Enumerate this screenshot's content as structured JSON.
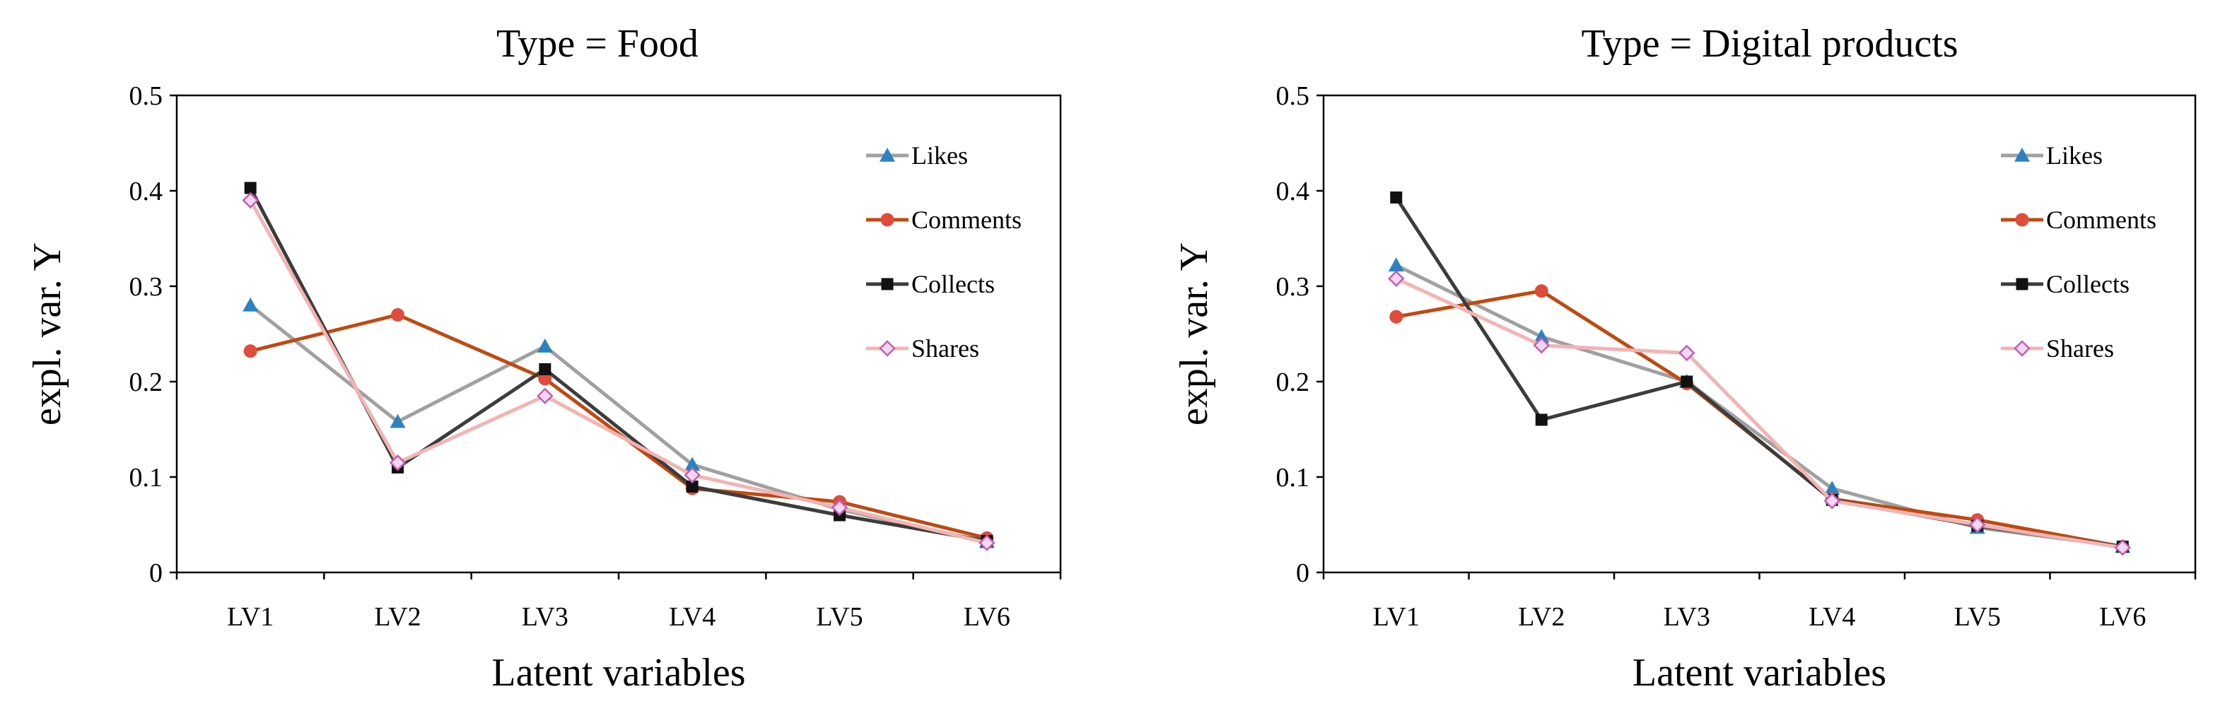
{
  "colors": {
    "Likes": "#a0a0a0",
    "Comments": "#bf4a10",
    "Collects": "#3c3c3c",
    "Shares": "#f4b3b3",
    "likes_marker": "#2c82c0",
    "comments_marker": "#de4c3c",
    "collects_marker": "#111111",
    "shares_marker": "#c060b0"
  },
  "chart_data": [
    {
      "type": "line",
      "title": "Type = Food",
      "xlabel": "Latent variables",
      "ylabel": "expl. var. Y",
      "categories": [
        "LV1",
        "LV2",
        "LV3",
        "LV4",
        "LV5",
        "LV6"
      ],
      "ylim": [
        0,
        0.5
      ],
      "yticks": [
        "0",
        "0.1",
        "0.2",
        "0.3",
        "0.4",
        "0.5"
      ],
      "legend_position": "top-right",
      "grid": false,
      "series": [
        {
          "name": "Likes",
          "marker": "triangle",
          "values": [
            0.28,
            0.158,
            0.237,
            0.113,
            0.066,
            0.032
          ]
        },
        {
          "name": "Comments",
          "marker": "circle",
          "values": [
            0.232,
            0.27,
            0.203,
            0.088,
            0.074,
            0.036
          ]
        },
        {
          "name": "Collects",
          "marker": "square",
          "values": [
            0.403,
            0.11,
            0.213,
            0.09,
            0.06,
            0.033
          ]
        },
        {
          "name": "Shares",
          "marker": "diamond",
          "values": [
            0.39,
            0.115,
            0.185,
            0.102,
            0.068,
            0.031
          ]
        }
      ]
    },
    {
      "type": "line",
      "title": "Type = Digital products",
      "xlabel": "Latent variables",
      "ylabel": "expl. var. Y",
      "categories": [
        "LV1",
        "LV2",
        "LV3",
        "LV4",
        "LV5",
        "LV6"
      ],
      "ylim": [
        0,
        0.5
      ],
      "yticks": [
        "0",
        "0.1",
        "0.2",
        "0.3",
        "0.4",
        "0.5"
      ],
      "legend_position": "top-right",
      "grid": false,
      "series": [
        {
          "name": "Likes",
          "marker": "triangle",
          "values": [
            0.322,
            0.247,
            0.2,
            0.088,
            0.047,
            0.027
          ]
        },
        {
          "name": "Comments",
          "marker": "circle",
          "values": [
            0.268,
            0.295,
            0.198,
            0.077,
            0.055,
            0.027
          ]
        },
        {
          "name": "Collects",
          "marker": "square",
          "values": [
            0.393,
            0.16,
            0.2,
            0.076,
            0.049,
            0.027
          ]
        },
        {
          "name": "Shares",
          "marker": "diamond",
          "values": [
            0.308,
            0.238,
            0.23,
            0.075,
            0.05,
            0.026
          ]
        }
      ]
    }
  ]
}
